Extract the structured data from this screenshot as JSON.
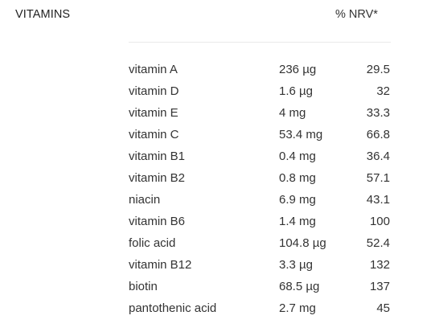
{
  "header": {
    "title": "VITAMINS",
    "nrv_label": "% NRV*"
  },
  "rows": [
    {
      "name": "vitamin A",
      "amount": "236 µg",
      "nrv": "29.5"
    },
    {
      "name": "vitamin D",
      "amount": "1.6 µg",
      "nrv": "32"
    },
    {
      "name": "vitamin E",
      "amount": "4 mg",
      "nrv": "33.3"
    },
    {
      "name": "vitamin C",
      "amount": "53.4 mg",
      "nrv": "66.8"
    },
    {
      "name": "vitamin B1",
      "amount": "0.4 mg",
      "nrv": "36.4"
    },
    {
      "name": "vitamin B2",
      "amount": "0.8 mg",
      "nrv": "57.1"
    },
    {
      "name": "niacin",
      "amount": "6.9 mg",
      "nrv": "43.1"
    },
    {
      "name": "vitamin B6",
      "amount": "1.4 mg",
      "nrv": "100"
    },
    {
      "name": "folic acid",
      "amount": "104.8 µg",
      "nrv": "52.4"
    },
    {
      "name": "vitamin B12",
      "amount": "3.3 µg",
      "nrv": "132"
    },
    {
      "name": "biotin",
      "amount": "68.5 µg",
      "nrv": "137"
    },
    {
      "name": "pantothenic acid",
      "amount": "2.7 mg",
      "nrv": "45"
    }
  ]
}
